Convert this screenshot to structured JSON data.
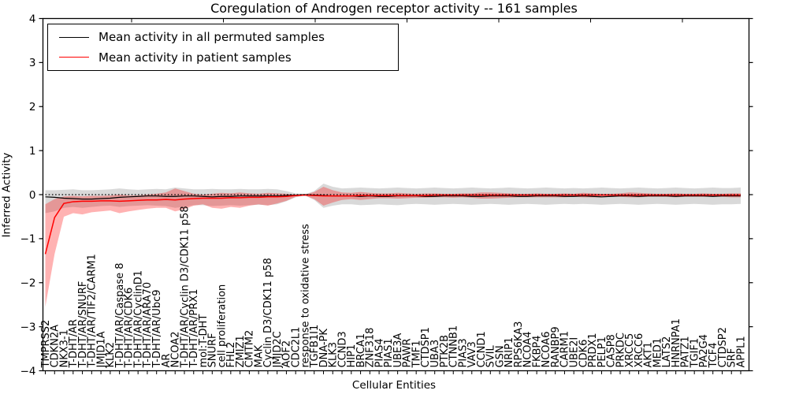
{
  "figure": {
    "title": "Coregulation of Androgen receptor activity -- 161 samples",
    "xlabel": "Cellular Entities",
    "ylabel": "Inferred Activity"
  },
  "chart_data": {
    "type": "line",
    "title": "Coregulation of Androgen receptor activity -- 161 samples",
    "xlabel": "Cellular Entities",
    "ylabel": "Inferred Activity",
    "ylim": [
      -4,
      4
    ],
    "yticks": [
      4,
      3,
      2,
      1,
      0,
      -1,
      -2,
      -3,
      -4
    ],
    "ytick_labels": [
      "4",
      "3",
      "2",
      "1",
      "0",
      "−1",
      "−2",
      "−3",
      "−4"
    ],
    "grid": false,
    "zero_line": {
      "style": "dotted",
      "color": "#000000",
      "value": 0
    },
    "legend": {
      "position": "upper left",
      "entries": [
        {
          "label": "Mean activity in all permuted samples",
          "color": "#000000"
        },
        {
          "label": "Mean activity in patient samples",
          "color": "#ff0000"
        }
      ]
    },
    "categories": [
      "TMPRSS2",
      "CDKN2A",
      "NKX3-1",
      "T-DHT/AR",
      "T-DHT/AR/SNURF",
      "T-DHT/AR/TIF2/CARM1",
      "JMJD1A",
      "KLK2",
      "T-DHT/AR/Caspase 8",
      "T-DHT/AR/CDK6",
      "T-DHT/AR/CyclinD1",
      "T-DHT/AR/ARA70",
      "T-DHT/AR/Ubc9",
      "AR",
      "NCOA2",
      "T-DHT/AR/Cyclin D3/CDK11 p58",
      "T-DHT/AR/PRX1",
      "mol:T-DHT",
      "SNURF",
      "cell proliferation",
      "FHL2",
      "ZMIZ1",
      "CMTM2",
      "MAK",
      "Cyclin D3/CDK11 p58",
      "JMJD2C",
      "AOF2",
      "CDC2L1",
      "response to oxidative stress",
      "TGFB1I1",
      "DNA-PK",
      "KLK3",
      "CCND3",
      "HIP1",
      "BRCA1",
      "ZNF318",
      "PIAS4",
      "PIAS1",
      "UBE3A",
      "PAWR",
      "TMF1",
      "CTDSP1",
      "UBA3",
      "PTK2B",
      "CTNNB1",
      "PIAS3",
      "VAV3",
      "CCND1",
      "SVIL",
      "GSN",
      "NRIP1",
      "RPS6KA3",
      "NCOA4",
      "FKBP4",
      "NCOA6",
      "RANBP9",
      "CARM1",
      "UBE2I",
      "CDK6",
      "PRDX1",
      "PELP1",
      "CASP8",
      "PRKDC",
      "XRCC5",
      "XRCC6",
      "AKT1",
      "MED1",
      "LATS2",
      "HNRNPA1",
      "PATZ1",
      "TGIF1",
      "PA2G4",
      "TCF4",
      "CTDSP2",
      "SRF",
      "APPL1"
    ],
    "series": [
      {
        "name": "Mean activity in all permuted samples",
        "color": "#000000",
        "values": [
          -0.05,
          -0.06,
          -0.08,
          -0.09,
          -0.1,
          -0.1,
          -0.09,
          -0.08,
          -0.06,
          -0.05,
          -0.04,
          -0.03,
          -0.03,
          -0.04,
          -0.04,
          -0.03,
          -0.03,
          -0.04,
          -0.05,
          -0.04,
          -0.04,
          -0.03,
          -0.03,
          -0.03,
          -0.03,
          -0.03,
          -0.02,
          -0.01,
          0.0,
          -0.01,
          -0.02,
          -0.03,
          -0.03,
          -0.03,
          -0.04,
          -0.03,
          -0.04,
          -0.04,
          -0.03,
          -0.03,
          -0.03,
          -0.04,
          -0.04,
          -0.03,
          -0.03,
          -0.03,
          -0.04,
          -0.04,
          -0.03,
          -0.03,
          -0.03,
          -0.04,
          -0.04,
          -0.03,
          -0.03,
          -0.03,
          -0.04,
          -0.04,
          -0.03,
          -0.04,
          -0.05,
          -0.04,
          -0.03,
          -0.03,
          -0.04,
          -0.03,
          -0.03,
          -0.03,
          -0.04,
          -0.03,
          -0.03,
          -0.03,
          -0.04,
          -0.03,
          -0.03,
          -0.03
        ]
      },
      {
        "name": "Mean activity in patient samples",
        "color": "#ff0000",
        "values": [
          -1.35,
          -0.52,
          -0.2,
          -0.16,
          -0.15,
          -0.15,
          -0.14,
          -0.14,
          -0.15,
          -0.14,
          -0.13,
          -0.12,
          -0.12,
          -0.11,
          -0.12,
          -0.1,
          -0.09,
          -0.08,
          -0.08,
          -0.08,
          -0.07,
          -0.07,
          -0.06,
          -0.06,
          -0.05,
          -0.05,
          -0.04,
          -0.02,
          -0.01,
          -0.02,
          -0.03,
          -0.03,
          -0.03,
          -0.03,
          -0.02,
          -0.02,
          -0.02,
          -0.02,
          -0.02,
          -0.02,
          -0.02,
          -0.02,
          -0.01,
          -0.01,
          -0.01,
          -0.01,
          -0.01,
          -0.01,
          -0.01,
          -0.01,
          -0.01,
          -0.01,
          -0.01,
          -0.01,
          -0.01,
          -0.01,
          -0.01,
          -0.01,
          -0.01,
          -0.01,
          -0.01,
          -0.01,
          -0.01,
          -0.01,
          -0.01,
          -0.01,
          -0.01,
          -0.01,
          -0.01,
          -0.01,
          -0.01,
          -0.01,
          -0.01,
          -0.01,
          -0.01,
          -0.01
        ]
      }
    ],
    "bands": [
      {
        "name": "permuted-envelope",
        "color": "#000000",
        "opacity": 0.15,
        "upper": [
          0.1,
          0.1,
          0.11,
          0.12,
          0.1,
          0.1,
          0.11,
          0.12,
          0.14,
          0.12,
          0.11,
          0.12,
          0.13,
          0.12,
          0.16,
          0.14,
          0.12,
          0.12,
          0.13,
          0.12,
          0.12,
          0.13,
          0.12,
          0.12,
          0.13,
          0.12,
          0.08,
          0.03,
          0.01,
          0.08,
          0.25,
          0.18,
          0.14,
          0.15,
          0.16,
          0.15,
          0.14,
          0.15,
          0.16,
          0.15,
          0.14,
          0.15,
          0.16,
          0.15,
          0.14,
          0.15,
          0.16,
          0.15,
          0.14,
          0.15,
          0.16,
          0.15,
          0.14,
          0.15,
          0.16,
          0.15,
          0.14,
          0.15,
          0.14,
          0.15,
          0.16,
          0.15,
          0.14,
          0.15,
          0.16,
          0.15,
          0.14,
          0.15,
          0.16,
          0.15,
          0.14,
          0.15,
          0.16,
          0.15,
          0.15,
          0.16
        ],
        "lower": [
          -0.42,
          -0.38,
          -0.3,
          -0.28,
          -0.3,
          -0.28,
          -0.26,
          -0.25,
          -0.28,
          -0.26,
          -0.25,
          -0.24,
          -0.25,
          -0.26,
          -0.3,
          -0.28,
          -0.24,
          -0.24,
          -0.26,
          -0.25,
          -0.24,
          -0.25,
          -0.24,
          -0.23,
          -0.24,
          -0.22,
          -0.15,
          -0.06,
          -0.02,
          -0.12,
          -0.3,
          -0.25,
          -0.22,
          -0.22,
          -0.24,
          -0.23,
          -0.22,
          -0.23,
          -0.24,
          -0.22,
          -0.21,
          -0.22,
          -0.23,
          -0.22,
          -0.21,
          -0.22,
          -0.23,
          -0.22,
          -0.21,
          -0.22,
          -0.23,
          -0.22,
          -0.21,
          -0.22,
          -0.23,
          -0.22,
          -0.21,
          -0.22,
          -0.21,
          -0.22,
          -0.23,
          -0.22,
          -0.21,
          -0.22,
          -0.23,
          -0.22,
          -0.21,
          -0.22,
          -0.23,
          -0.22,
          -0.21,
          -0.22,
          -0.23,
          -0.22,
          -0.22,
          -0.21
        ]
      },
      {
        "name": "patient-envelope",
        "color": "#ff0000",
        "opacity": 0.3,
        "upper": [
          -0.22,
          -0.1,
          -0.04,
          -0.03,
          -0.04,
          -0.03,
          -0.03,
          -0.02,
          0.0,
          -0.02,
          -0.02,
          0.0,
          0.02,
          0.05,
          0.14,
          0.08,
          0.02,
          0.0,
          0.02,
          0.04,
          0.03,
          0.05,
          0.03,
          0.02,
          0.04,
          0.03,
          0.02,
          0.0,
          0.0,
          0.06,
          0.18,
          0.1,
          0.05,
          0.04,
          0.06,
          0.04,
          0.03,
          0.03,
          0.04,
          0.03,
          0.02,
          0.03,
          0.03,
          0.02,
          0.02,
          0.03,
          0.03,
          0.05,
          0.05,
          0.04,
          0.03,
          0.02,
          0.02,
          0.03,
          0.02,
          0.02,
          0.03,
          0.02,
          0.04,
          0.03,
          0.02,
          0.02,
          0.03,
          0.05,
          0.04,
          0.03,
          0.02,
          0.02,
          0.03,
          0.02,
          0.02,
          0.03,
          0.02,
          0.02,
          0.03,
          0.03
        ],
        "lower": [
          -2.55,
          -1.35,
          -0.5,
          -0.42,
          -0.45,
          -0.4,
          -0.38,
          -0.36,
          -0.42,
          -0.38,
          -0.35,
          -0.32,
          -0.3,
          -0.3,
          -0.38,
          -0.33,
          -0.25,
          -0.22,
          -0.3,
          -0.32,
          -0.28,
          -0.3,
          -0.25,
          -0.22,
          -0.25,
          -0.2,
          -0.14,
          -0.05,
          -0.02,
          -0.1,
          -0.25,
          -0.18,
          -0.12,
          -0.1,
          -0.12,
          -0.1,
          -0.08,
          -0.08,
          -0.09,
          -0.08,
          -0.07,
          -0.07,
          -0.06,
          -0.06,
          -0.07,
          -0.06,
          -0.07,
          -0.09,
          -0.09,
          -0.08,
          -0.07,
          -0.06,
          -0.06,
          -0.06,
          -0.06,
          -0.06,
          -0.06,
          -0.05,
          -0.06,
          -0.06,
          -0.06,
          -0.05,
          -0.05,
          -0.06,
          -0.06,
          -0.05,
          -0.05,
          -0.05,
          -0.06,
          -0.05,
          -0.05,
          -0.05,
          -0.05,
          -0.05,
          -0.06,
          -0.06
        ]
      }
    ]
  }
}
